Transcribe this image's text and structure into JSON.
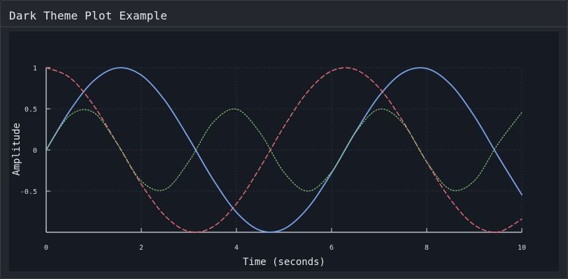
{
  "window": {
    "title": "Dark Theme Plot Example"
  },
  "colors": {
    "background": "#151a23",
    "axis": "#b8bcc4",
    "grid": "#3a4150",
    "sin": "#7aa2e8",
    "cos": "#e06c75",
    "product": "#8ed17a"
  },
  "chart_data": {
    "type": "line",
    "title": "",
    "xlabel": "Time (seconds)",
    "ylabel": "Amplitude",
    "xlim": [
      0,
      10
    ],
    "ylim": [
      -1,
      1
    ],
    "xticks": [
      0,
      2,
      4,
      6,
      8,
      10
    ],
    "yticks": [
      1,
      0.5,
      0,
      -0.5
    ],
    "ytick_labels": [
      "1",
      "0.5",
      "0",
      "-0.5"
    ],
    "grid": "dotted",
    "legend": "none",
    "x": [
      0,
      0.5,
      1,
      1.5,
      2,
      2.5,
      3,
      3.5,
      4,
      4.5,
      5,
      5.5,
      6,
      6.5,
      7,
      7.5,
      8,
      8.5,
      9,
      9.5,
      10
    ],
    "series": [
      {
        "style": "solid",
        "color": "#7aa2e8",
        "values": [
          0,
          0.479,
          0.841,
          0.997,
          0.909,
          0.598,
          0.141,
          -0.351,
          -0.757,
          -0.978,
          -0.959,
          -0.706,
          -0.279,
          0.215,
          0.657,
          0.938,
          0.989,
          0.798,
          0.412,
          -0.075,
          -0.544
        ]
      },
      {
        "style": "dashed",
        "color": "#e06c75",
        "values": [
          1,
          0.878,
          0.54,
          0.071,
          -0.416,
          -0.801,
          -0.99,
          -0.936,
          -0.654,
          -0.211,
          0.284,
          0.709,
          0.96,
          0.977,
          0.754,
          0.347,
          -0.146,
          -0.602,
          -0.911,
          -0.997,
          -0.839
        ]
      },
      {
        "style": "dotted",
        "color": "#8ed17a",
        "values": [
          0,
          0.421,
          0.455,
          0.071,
          -0.378,
          -0.479,
          -0.14,
          0.328,
          0.495,
          0.206,
          -0.272,
          -0.5,
          -0.268,
          0.21,
          0.495,
          0.325,
          -0.144,
          -0.481,
          -0.375,
          0.075,
          0.456
        ]
      }
    ]
  }
}
